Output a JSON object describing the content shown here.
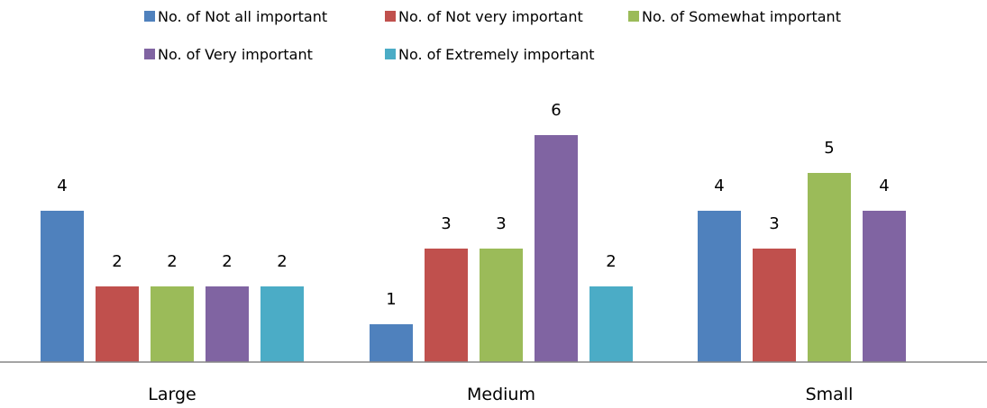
{
  "chart_data": {
    "type": "bar",
    "title": "",
    "xlabel": "",
    "ylabel": "",
    "categories": [
      "Large",
      "Medium",
      "Small"
    ],
    "series": [
      {
        "name": "No. of Not all important",
        "color": "#4F81BD",
        "values": [
          4,
          1,
          4
        ]
      },
      {
        "name": "No. of Not very important",
        "color": "#C0504D",
        "values": [
          2,
          3,
          3
        ]
      },
      {
        "name": "No. of Somewhat important",
        "color": "#9BBB59",
        "values": [
          2,
          3,
          5
        ]
      },
      {
        "name": "No. of Very important",
        "color": "#8064A2",
        "values": [
          2,
          6,
          4
        ]
      },
      {
        "name": "No. of Extremely important",
        "color": "#4BACC6",
        "values": [
          2,
          2,
          null
        ]
      }
    ],
    "ylim": [
      0,
      6
    ],
    "grid": false,
    "legend_position": "top",
    "data_labels": true
  }
}
